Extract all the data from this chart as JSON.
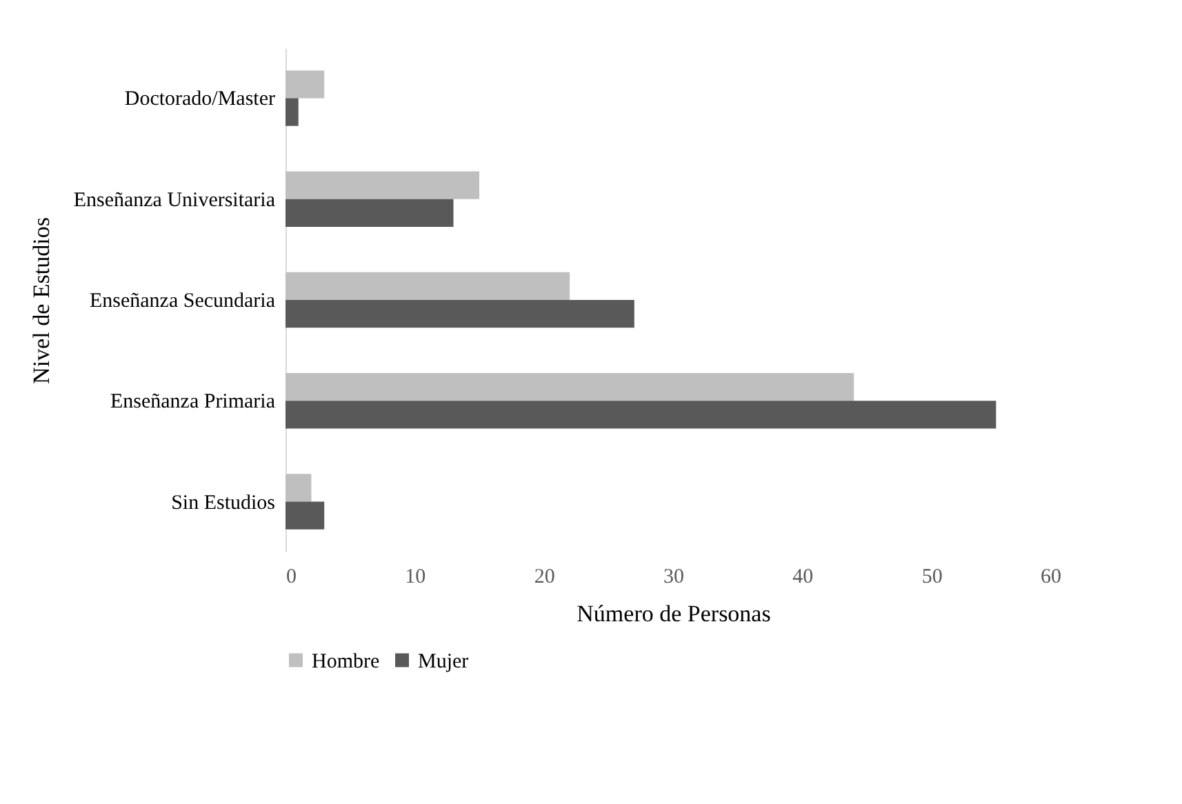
{
  "chart_data": {
    "type": "bar",
    "orientation": "horizontal",
    "xlabel": "Número de Personas",
    "ylabel": "Nivel de Estudios",
    "categories": [
      "Doctorado/Master",
      "Enseñanza Universitaria",
      "Enseñanza Secundaria",
      "Enseñanza Primaria",
      "Sin Estudios"
    ],
    "series": [
      {
        "name": "Hombre",
        "color": "#bfbfbf",
        "values": [
          3,
          15,
          22,
          44,
          2
        ]
      },
      {
        "name": "Mujer",
        "color": "#595959",
        "values": [
          1,
          13,
          27,
          55,
          3
        ]
      }
    ],
    "xlim": [
      0,
      60
    ],
    "xticks": [
      0,
      10,
      20,
      30,
      40,
      50,
      60
    ],
    "grid": false,
    "legend": "bottom"
  }
}
